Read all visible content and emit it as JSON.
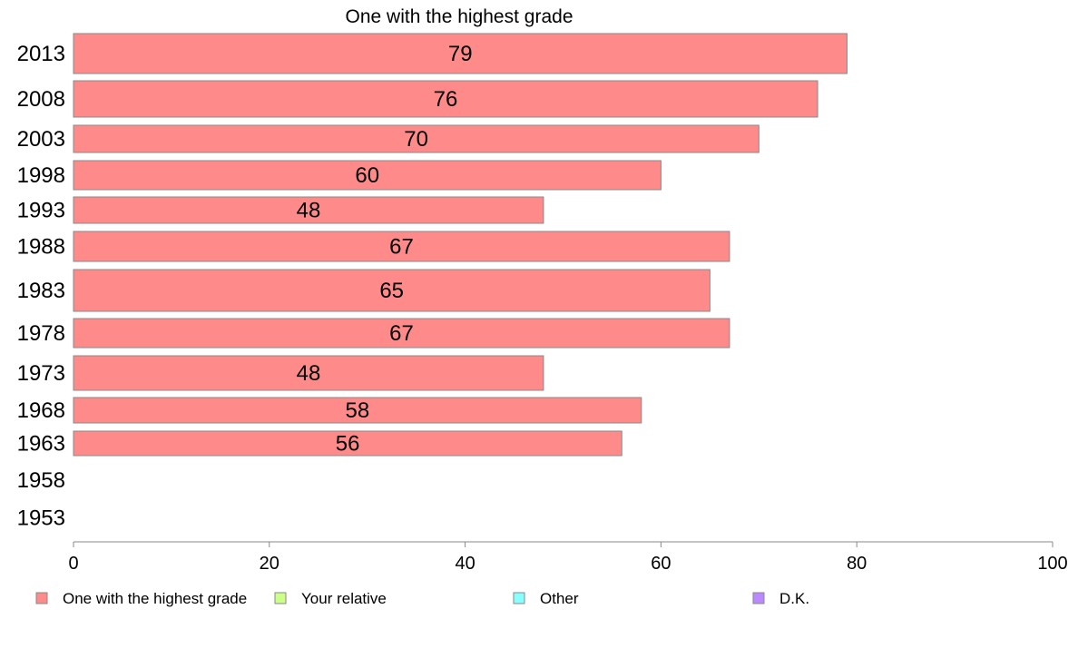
{
  "chart_data": {
    "type": "bar",
    "orientation": "horizontal",
    "title": "One with the highest grade",
    "xlabel": "",
    "ylabel": "",
    "xlim": [
      0,
      100
    ],
    "xticks": [
      "0",
      "20",
      "40",
      "60",
      "80",
      "100"
    ],
    "categories": [
      "2013",
      "2008",
      "2003",
      "1998",
      "1993",
      "1988",
      "1983",
      "1978",
      "1973",
      "1968",
      "1963",
      "1958",
      "1953"
    ],
    "series": [
      {
        "name": "One with the highest grade",
        "color": "#ff8a8a",
        "values": [
          79,
          76,
          70,
          60,
          48,
          67,
          65,
          67,
          48,
          58,
          56,
          null,
          null
        ],
        "labels": [
          "79",
          "76",
          "70",
          "60",
          "48",
          "67",
          "65",
          "67",
          "48",
          "58",
          "56",
          "",
          ""
        ]
      }
    ],
    "legend": {
      "placement": "bottom",
      "items": [
        {
          "label": "One with the highest grade",
          "color": "#ff8a8a"
        },
        {
          "label": "Your relative",
          "color": "#ccff88"
        },
        {
          "label": "Other",
          "color": "#88ffff"
        },
        {
          "label": "D.K.",
          "color": "#bb88ff"
        }
      ]
    },
    "grid": false,
    "bar_edge_color": "#888888"
  }
}
